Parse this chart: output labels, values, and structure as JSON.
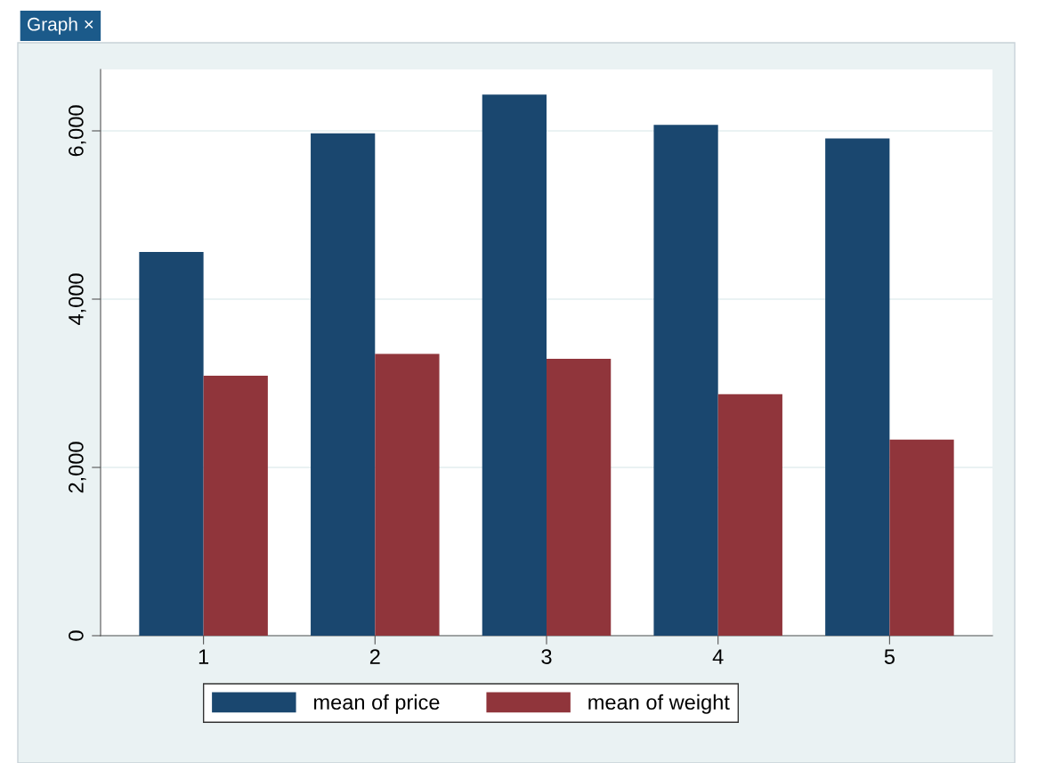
{
  "chart_data": {
    "type": "bar",
    "categories": [
      "1",
      "2",
      "3",
      "4",
      "5"
    ],
    "series": [
      {
        "name": "mean of price",
        "color": "#1a476f",
        "values": [
          4560,
          5970,
          6430,
          6070,
          5910
        ]
      },
      {
        "name": "mean of weight",
        "color": "#90353b",
        "values": [
          3090,
          3350,
          3290,
          2870,
          2330
        ]
      }
    ],
    "ylim": [
      0,
      6730
    ],
    "yticks": [
      {
        "value": 0,
        "label": "0"
      },
      {
        "value": 2000,
        "label": "2,000"
      },
      {
        "value": 4000,
        "label": "4,000"
      },
      {
        "value": 6000,
        "label": "6,000"
      }
    ],
    "grid": "y",
    "legend": "bottom",
    "annotations": [
      "Graph ×"
    ]
  }
}
